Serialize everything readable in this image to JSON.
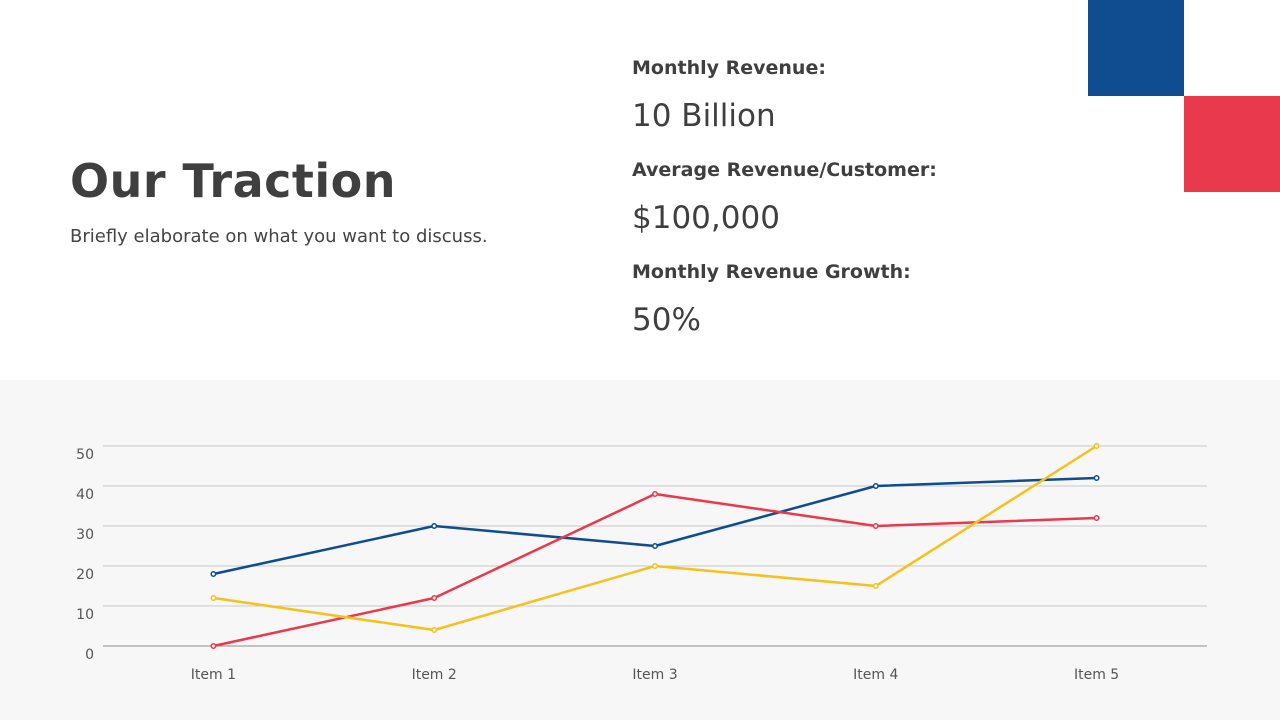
{
  "header": {
    "title": "Our Traction",
    "subtitle": "Briefly elaborate on what you want to discuss."
  },
  "kpis": [
    {
      "label": "Monthly Revenue:",
      "value": "10 Billion"
    },
    {
      "label": "Average Revenue/Customer:",
      "value": "$100,000"
    },
    {
      "label": "Monthly Revenue Growth:",
      "value": "50%"
    }
  ],
  "colors": {
    "blue": "#0f4c90",
    "red": "#e8394d",
    "yellow": "#f5c11b",
    "panel_bg": "#f7f7f7",
    "text": "#3f3f3f"
  },
  "chart_data": {
    "type": "line",
    "title": "",
    "xlabel": "",
    "ylabel": "",
    "categories": [
      "Item 1",
      "Item 2",
      "Item 3",
      "Item 4",
      "Item 5"
    ],
    "ylim": [
      0,
      50
    ],
    "yticks": [
      0,
      10,
      20,
      30,
      40,
      50
    ],
    "grid": true,
    "legend": "none",
    "series": [
      {
        "color": "#0f4c90",
        "values": [
          18,
          30,
          25,
          40,
          42
        ]
      },
      {
        "color": "#e8394d",
        "values": [
          0,
          12,
          38,
          30,
          32
        ]
      },
      {
        "color": "#f5c11b",
        "values": [
          12,
          4,
          20,
          15,
          50
        ]
      }
    ]
  }
}
